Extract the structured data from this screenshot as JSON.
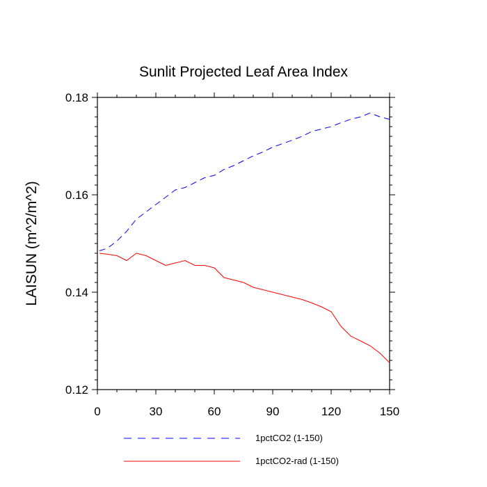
{
  "chart_data": {
    "type": "line",
    "title": "Sunlit Projected Leaf Area Index",
    "xlabel": "",
    "ylabel": "LAISUN  (m^2/m^2)",
    "xlim": [
      0,
      150
    ],
    "ylim": [
      0.12,
      0.18
    ],
    "xticks": [
      0,
      30,
      60,
      90,
      120,
      150
    ],
    "xticklabels": [
      "0",
      "30",
      "60",
      "90",
      "120",
      "150"
    ],
    "yticks": [
      0.12,
      0.14,
      0.16,
      0.18
    ],
    "yticklabels": [
      "0.12",
      "0.14",
      "0.16",
      "0.18"
    ],
    "grid": false,
    "legend": "bottom",
    "series": [
      {
        "name": "1pctCO2 (1-150)",
        "color": "#0000ff",
        "dash": "dashed",
        "x": [
          1,
          5,
          10,
          15,
          20,
          25,
          30,
          35,
          40,
          45,
          50,
          55,
          60,
          65,
          70,
          75,
          80,
          85,
          90,
          95,
          100,
          105,
          110,
          115,
          120,
          125,
          130,
          135,
          140,
          145,
          150
        ],
        "y": [
          0.1485,
          0.149,
          0.1505,
          0.1525,
          0.155,
          0.1565,
          0.158,
          0.1595,
          0.161,
          0.1615,
          0.1625,
          0.1635,
          0.164,
          0.1652,
          0.166,
          0.167,
          0.168,
          0.1688,
          0.1698,
          0.1705,
          0.1712,
          0.172,
          0.173,
          0.1735,
          0.174,
          0.1748,
          0.1755,
          0.176,
          0.1768,
          0.176,
          0.1755
        ]
      },
      {
        "name": "1pctCO2-rad (1-150)",
        "color": "#ff0000",
        "dash": "solid",
        "x": [
          1,
          5,
          10,
          15,
          20,
          25,
          30,
          35,
          40,
          45,
          50,
          55,
          60,
          65,
          70,
          75,
          80,
          85,
          90,
          95,
          100,
          105,
          110,
          115,
          120,
          125,
          130,
          135,
          140,
          145,
          150
        ],
        "y": [
          0.148,
          0.1478,
          0.1475,
          0.1465,
          0.148,
          0.1475,
          0.1465,
          0.1455,
          0.146,
          0.1465,
          0.1455,
          0.1455,
          0.145,
          0.143,
          0.1425,
          0.142,
          0.141,
          0.1405,
          0.14,
          0.1395,
          0.139,
          0.1385,
          0.1378,
          0.137,
          0.136,
          0.133,
          0.131,
          0.13,
          0.129,
          0.1275,
          0.1255
        ]
      }
    ]
  }
}
